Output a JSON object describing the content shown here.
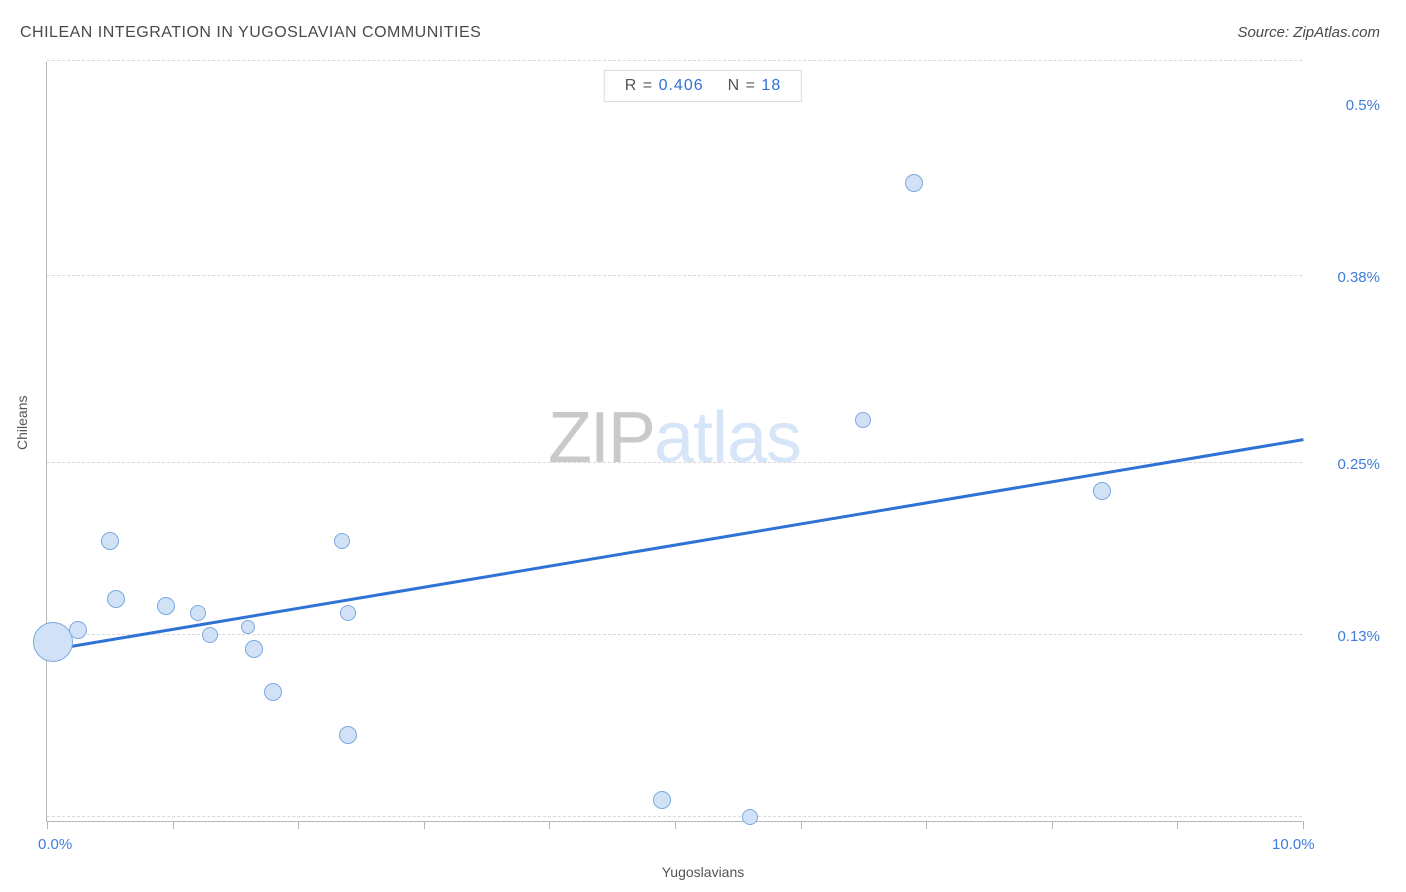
{
  "title": "CHILEAN INTEGRATION IN YUGOSLAVIAN COMMUNITIES",
  "source_label": "Source: ZipAtlas.com",
  "x_axis_label": "Yugoslavians",
  "y_axis_label": "Chileans",
  "watermark": {
    "part1": "ZIP",
    "part2": "atlas"
  },
  "stats": {
    "r_label": "R =",
    "r_value": "0.406",
    "n_label": "N =",
    "n_value": "18"
  },
  "chart": {
    "type": "scatter",
    "background_color": "#ffffff",
    "grid_color": "#d8d8d8",
    "axis_color": "#b7b7b7",
    "label_color": "#3d7ddb",
    "point_fill": "#d1e2f7",
    "point_stroke": "#7aa9e0",
    "point_stroke_width": 1,
    "trend_color": "#2f72d6",
    "trend_width": 3,
    "xlim": [
      0.0,
      10.0
    ],
    "ylim": [
      0.0,
      0.53
    ],
    "x_tick_positions": [
      0.0,
      1.0,
      2.0,
      3.0,
      4.0,
      5.0,
      6.0,
      7.0,
      8.0,
      9.0,
      10.0
    ],
    "y_grid_positions": [
      0.003,
      0.13,
      0.25,
      0.38,
      0.53
    ],
    "x_labels_only": [
      {
        "value": 0.0,
        "text": "0.0%"
      },
      {
        "value": 10.0,
        "text": "10.0%"
      }
    ],
    "y_labels_only": [
      {
        "value": 0.13,
        "text": "0.13%"
      },
      {
        "value": 0.25,
        "text": "0.25%"
      },
      {
        "value": 0.38,
        "text": "0.38%"
      },
      {
        "value": 0.5,
        "text": "0.5%"
      }
    ],
    "points": [
      {
        "x": 0.05,
        "y": 0.125,
        "r": 20
      },
      {
        "x": 0.25,
        "y": 0.133,
        "r": 9
      },
      {
        "x": 0.55,
        "y": 0.155,
        "r": 9
      },
      {
        "x": 0.5,
        "y": 0.195,
        "r": 9
      },
      {
        "x": 0.95,
        "y": 0.15,
        "r": 9
      },
      {
        "x": 1.2,
        "y": 0.145,
        "r": 8
      },
      {
        "x": 1.3,
        "y": 0.13,
        "r": 8
      },
      {
        "x": 1.6,
        "y": 0.135,
        "r": 7
      },
      {
        "x": 1.65,
        "y": 0.12,
        "r": 9
      },
      {
        "x": 1.8,
        "y": 0.09,
        "r": 9
      },
      {
        "x": 2.35,
        "y": 0.195,
        "r": 8
      },
      {
        "x": 2.4,
        "y": 0.06,
        "r": 9
      },
      {
        "x": 2.4,
        "y": 0.145,
        "r": 8
      },
      {
        "x": 4.9,
        "y": 0.015,
        "r": 9
      },
      {
        "x": 5.6,
        "y": 0.003,
        "r": 8
      },
      {
        "x": 6.5,
        "y": 0.28,
        "r": 8
      },
      {
        "x": 6.9,
        "y": 0.445,
        "r": 9
      },
      {
        "x": 8.4,
        "y": 0.23,
        "r": 9
      }
    ],
    "trend_line": {
      "x1": 0.0,
      "y1": 0.118,
      "x2": 10.0,
      "y2": 0.265
    }
  }
}
